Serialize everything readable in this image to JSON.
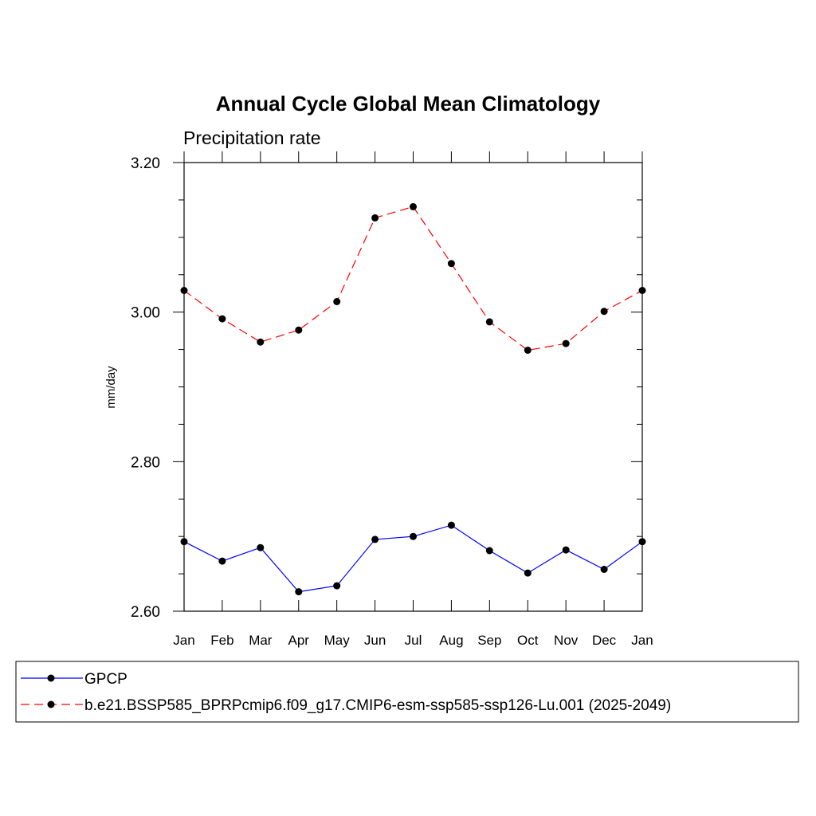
{
  "chart_data": {
    "type": "line",
    "title": "Annual Cycle Global Mean Climatology",
    "subtitle": "Precipitation rate",
    "ylabel": "mm/day",
    "xlabel": "",
    "categories": [
      "Jan",
      "Feb",
      "Mar",
      "Apr",
      "May",
      "Jun",
      "Jul",
      "Aug",
      "Sep",
      "Oct",
      "Nov",
      "Dec",
      "Jan"
    ],
    "ylim": [
      2.6,
      3.2
    ],
    "yticks": [
      "2.60",
      "2.80",
      "3.00",
      "3.20"
    ],
    "series": [
      {
        "name": "GPCP",
        "color": "#0000ff",
        "style": "solid",
        "values": [
          2.693,
          2.667,
          2.685,
          2.626,
          2.634,
          2.696,
          2.7,
          2.715,
          2.681,
          2.651,
          2.682,
          2.656,
          2.693
        ]
      },
      {
        "name": "b.e21.BSSP585_BPRPcmip6.f09_g17.CMIP6-esm-ssp585-ssp126-Lu.001 (2025-2049)",
        "color": "#ff0000",
        "style": "dashed",
        "values": [
          3.029,
          2.991,
          2.96,
          2.976,
          3.014,
          3.126,
          3.141,
          3.065,
          2.987,
          2.949,
          2.958,
          3.001,
          3.029
        ]
      }
    ],
    "grid": false,
    "legend_position": "bottom"
  }
}
